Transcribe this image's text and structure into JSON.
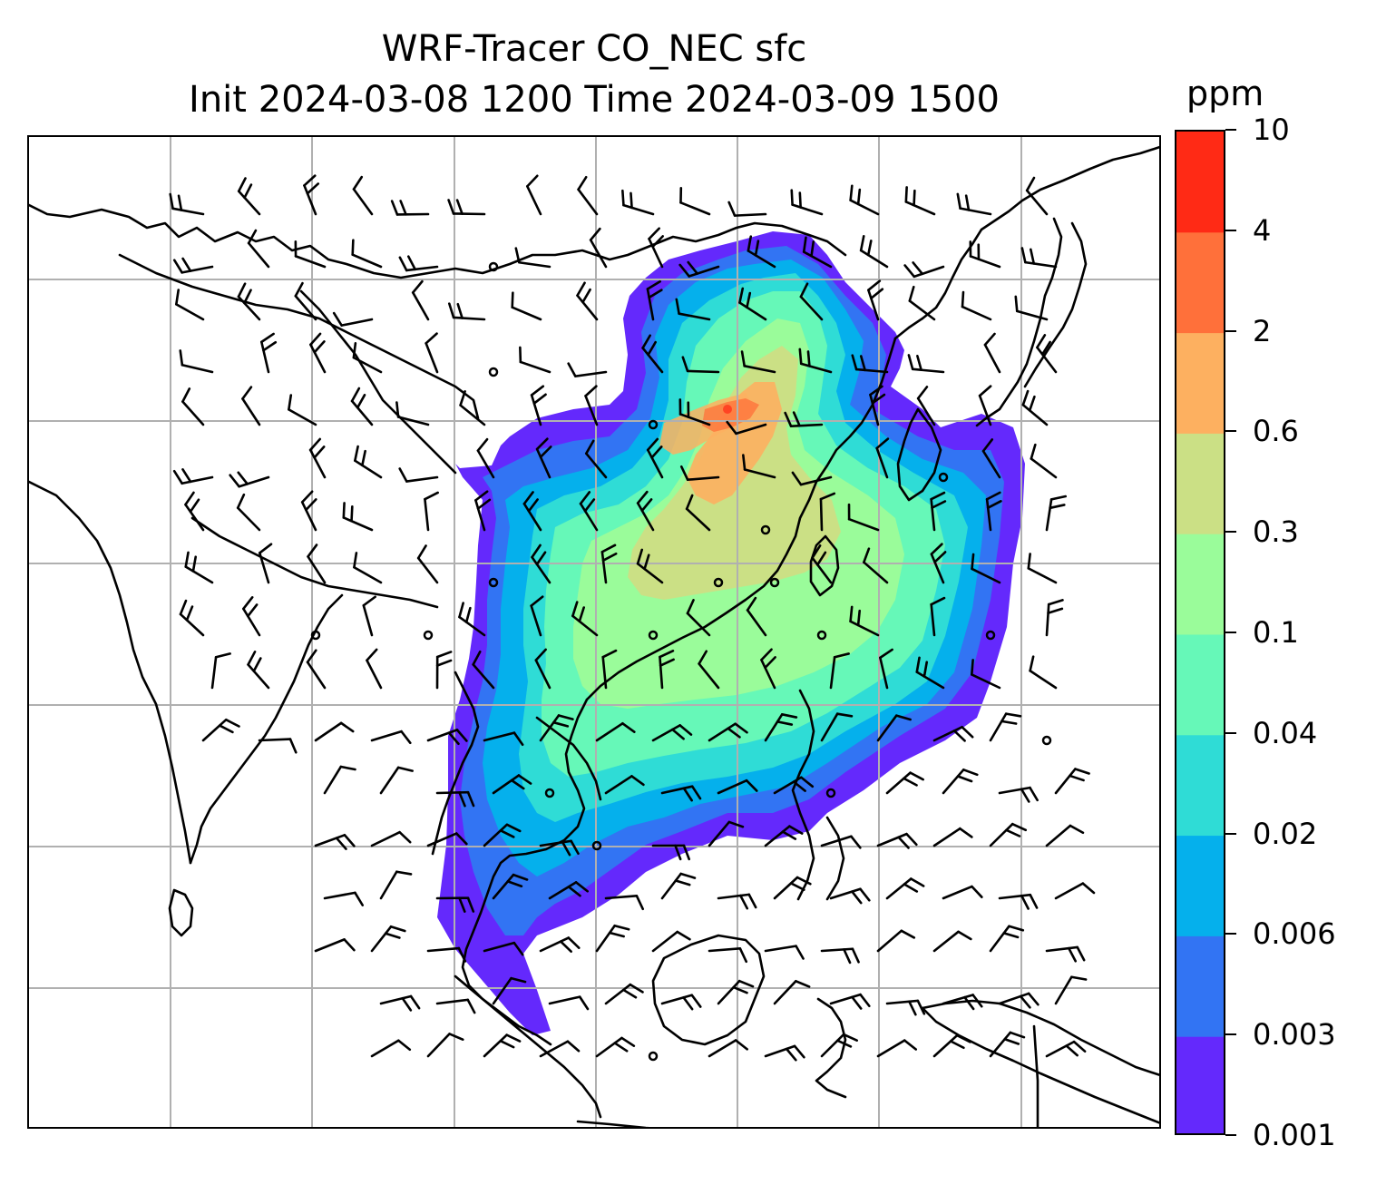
{
  "title": {
    "line1": "WRF-Tracer CO_NEC sfc",
    "line2": "Init 2024-03-08 1200 Time 2024-03-09 1500"
  },
  "colorbar": {
    "unit": "ppm",
    "levels": [
      "0.001",
      "0.003",
      "0.006",
      "0.02",
      "0.04",
      "0.1",
      "0.3",
      "0.6",
      "2",
      "4",
      "10"
    ],
    "colors": [
      "#6429fc",
      "#3274f3",
      "#05b0ec",
      "#2fdcd6",
      "#66f8b8",
      "#9afc9a",
      "#cbe085",
      "#fdb060",
      "#ff703a",
      "#ff2a15"
    ]
  },
  "map": {
    "gridlines": true,
    "field": "CO_NEC",
    "level": "sfc",
    "overlay": "wind barbs",
    "coastline_color": "#000000",
    "grid_color": "#b0b0b0"
  }
}
